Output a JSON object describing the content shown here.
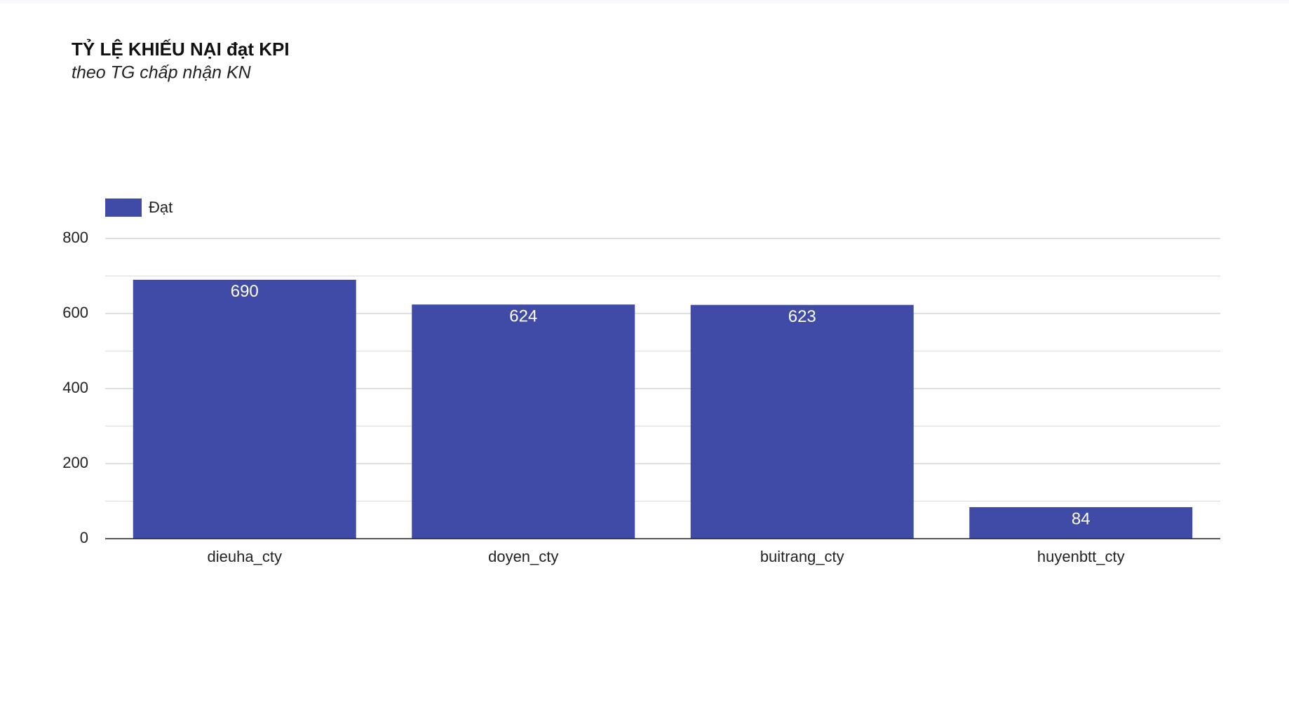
{
  "chart_data": {
    "type": "bar",
    "title": "TỶ LỆ KHIẾU NẠI đạt KPI",
    "subtitle": "theo TG chấp nhận KN",
    "categories": [
      "dieuha_cty",
      "doyen_cty",
      "buitrang_cty",
      "huyenbtt_cty"
    ],
    "series": [
      {
        "name": "Đạt",
        "color": "#3f4ba6",
        "values": [
          690,
          624,
          623,
          84
        ]
      }
    ],
    "ylim": [
      0,
      800
    ],
    "yticks": [
      0,
      200,
      400,
      600,
      800
    ],
    "grid": true,
    "legend": "top-left"
  }
}
